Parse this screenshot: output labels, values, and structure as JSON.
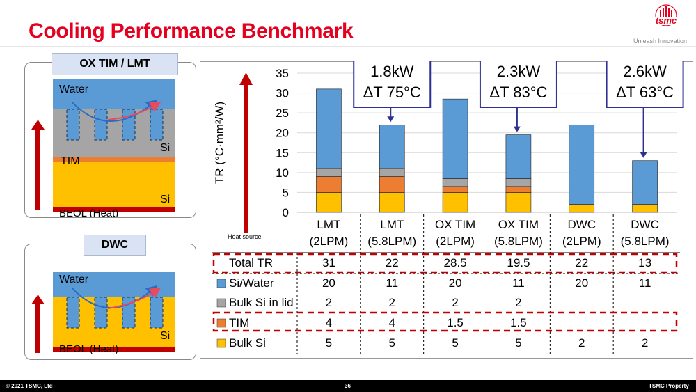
{
  "header": {
    "title": "Cooling Performance Benchmark",
    "logo_text": "tsmc",
    "tagline": "Unleash Innovation"
  },
  "footer": {
    "copyright": "© 2021 TSMC, Ltd",
    "page_number": "36",
    "property": "TSMC Property"
  },
  "panels": {
    "ox": {
      "label": "OX TIM / LMT",
      "water": "Water",
      "si_top": "Si",
      "tim": "TIM",
      "si_bottom": "Si",
      "beol": "BEOL (Heat)"
    },
    "dwc": {
      "label": "DWC",
      "water": "Water",
      "si": "Si",
      "beol": "BEOL (Heat)"
    }
  },
  "colors": {
    "title": "#e6001f",
    "si_water": "#5b9bd5",
    "bulk_si_lid": "#a5a5a5",
    "tim": "#ed7d31",
    "bulk_si": "#ffc000",
    "arrow": "#c00000",
    "callout_border": "#2e3192"
  },
  "chart_data": {
    "type": "bar",
    "stacked": true,
    "ylabel": "TR (°C·mm²/W)",
    "ylim": [
      0,
      35
    ],
    "yticks": [
      0,
      5,
      10,
      15,
      20,
      25,
      30,
      35
    ],
    "grid": true,
    "arrow_label": "Heat source",
    "categories": [
      [
        "LMT",
        "(2LPM)"
      ],
      [
        "LMT",
        "(5.8LPM)"
      ],
      [
        "OX TIM",
        "(2LPM)"
      ],
      [
        "OX TIM",
        "(5.8LPM)"
      ],
      [
        "DWC",
        "(2LPM)"
      ],
      [
        "DWC",
        "(5.8LPM)"
      ]
    ],
    "series": [
      {
        "name": "Bulk Si",
        "color": "#ffc000",
        "values": [
          5,
          5,
          5,
          5,
          2,
          2
        ]
      },
      {
        "name": "TIM",
        "color": "#ed7d31",
        "values": [
          4,
          4,
          1.5,
          1.5,
          null,
          null
        ]
      },
      {
        "name": "Bulk Si in lid",
        "color": "#a5a5a5",
        "values": [
          2,
          2,
          2,
          2,
          null,
          null
        ]
      },
      {
        "name": "Si/Water",
        "color": "#5b9bd5",
        "values": [
          20,
          11,
          20,
          11,
          20,
          11
        ]
      }
    ],
    "table": {
      "total_label": "Total TR",
      "totals": [
        "31",
        "22",
        "28.5",
        "19.5",
        "22",
        "13"
      ],
      "rows": [
        {
          "name": "Si/Water",
          "color": "#5b9bd5",
          "values": [
            "20",
            "11",
            "20",
            "11",
            "20",
            "11"
          ]
        },
        {
          "name": "Bulk Si in lid",
          "color": "#a5a5a5",
          "values": [
            "2",
            "2",
            "2",
            "2",
            "",
            ""
          ]
        },
        {
          "name": "TIM",
          "color": "#ed7d31",
          "values": [
            "4",
            "4",
            "1.5",
            "1.5",
            "",
            ""
          ]
        },
        {
          "name": "Bulk Si",
          "color": "#ffc000",
          "values": [
            "5",
            "5",
            "5",
            "5",
            "2",
            "2"
          ]
        }
      ]
    },
    "callouts": [
      {
        "power": "1.8kW",
        "delta": "ΔT 75°C",
        "category_index": 1
      },
      {
        "power": "2.3kW",
        "delta": "ΔT 83°C",
        "category_index": 3
      },
      {
        "power": "2.6kW",
        "delta": "ΔT 63°C",
        "category_index": 5
      }
    ]
  }
}
